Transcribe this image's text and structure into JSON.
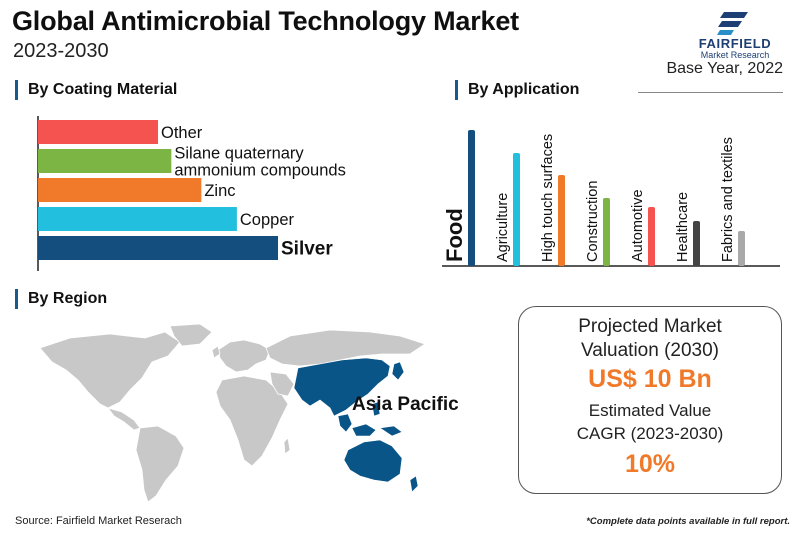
{
  "header": {
    "title": "Global Antimicrobial Technology Market",
    "subtitle": "2023-2030",
    "base_year": "Base Year, 2022"
  },
  "logo": {
    "name": "FAIRFIELD",
    "sub": "Market Research",
    "color": "#1d3f73"
  },
  "sections": {
    "coating": "By Coating Material",
    "application": "By Application",
    "region": "By Region"
  },
  "chart_data": [
    {
      "type": "bar",
      "orientation": "horizontal",
      "title": "By Coating Material",
      "categories": [
        "Other",
        "Silane quaternary ammonium compounds",
        "Zinc",
        "Copper",
        "Silver"
      ],
      "label_lines": [
        [
          "Other"
        ],
        [
          "Silane quaternary",
          "ammonium compounds"
        ],
        [
          "Zinc"
        ],
        [
          "Copper"
        ],
        [
          "Silver"
        ]
      ],
      "values": [
        108,
        120,
        147,
        179,
        216
      ],
      "colors": [
        "#f4534f",
        "#7db545",
        "#f07a2a",
        "#22bfdf",
        "#144e7e"
      ],
      "highlight": "Silver",
      "grid": false
    },
    {
      "type": "bar",
      "orientation": "vertical",
      "title": "By Application",
      "categories": [
        "Food",
        "Agriculture",
        "High touch surfaces",
        "Construction",
        "Automotive",
        "Healthcare",
        "Fabrics and textiles"
      ],
      "values": [
        136,
        113,
        91,
        68,
        59,
        45,
        35
      ],
      "colors": [
        "#144e7e",
        "#22bfdf",
        "#f07a2a",
        "#7db545",
        "#f4534f",
        "#444444",
        "#a9a9a9"
      ],
      "highlight": "Food",
      "grid": false
    }
  ],
  "region": {
    "highlight_label": "Asia Pacific",
    "highlight_color": "#0a5587",
    "land_color": "#c8c8c8"
  },
  "valuation": {
    "projected_label_line1": "Projected Market",
    "projected_label_line2": "Valuation (2030)",
    "projected_value": "US$ 10 Bn",
    "cagr_label_line1": "Estimated Value",
    "cagr_label_line2": "CAGR (2023-2030)",
    "cagr_value": "10%",
    "value_color": "#f07a2a"
  },
  "footer": {
    "source": "Source: Fairfield Market Reserach",
    "note": "*Complete data points available in full report."
  }
}
